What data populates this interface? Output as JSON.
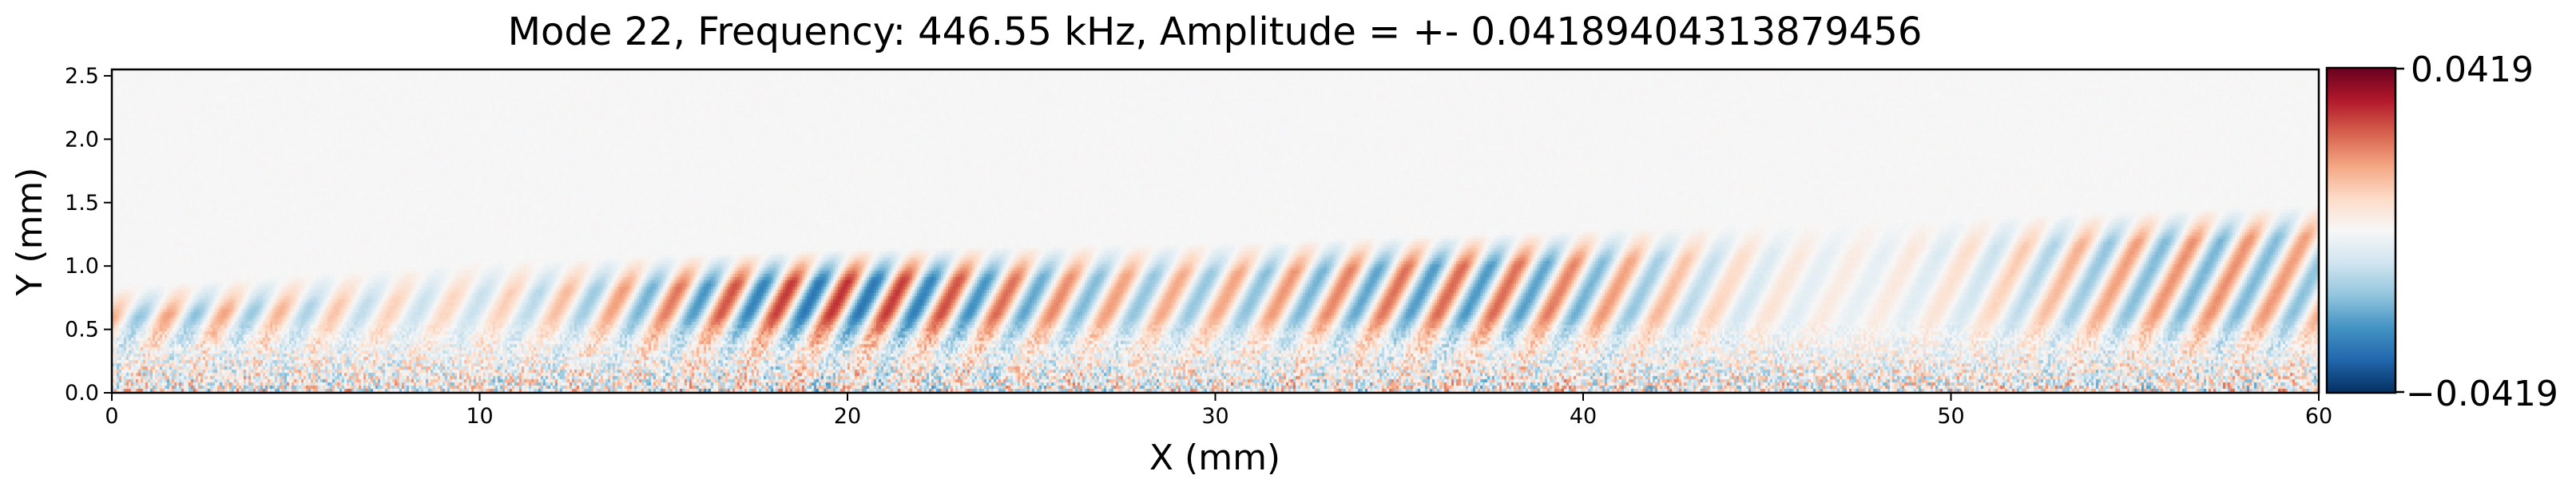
{
  "chart_data": {
    "type": "heatmap",
    "title": "Mode 22, Frequency: 446.55 kHz, Amplitude = +- 0.04189404313879456",
    "xlabel": "X (mm)",
    "ylabel": "Y (mm)",
    "xlim": [
      0,
      60
    ],
    "ylim": [
      0,
      2.55
    ],
    "x_ticks": [
      0,
      10,
      20,
      30,
      40,
      50,
      60
    ],
    "x_tick_labels": [
      "0",
      "10",
      "20",
      "30",
      "40",
      "50",
      "60"
    ],
    "y_ticks": [
      0.0,
      0.5,
      1.0,
      1.5,
      2.0,
      2.5
    ],
    "y_tick_labels": [
      "0.0",
      "0.5",
      "1.0",
      "1.5",
      "2.0",
      "2.5"
    ],
    "colorbar": {
      "cmap": "RdBu_r",
      "vmin": -0.0419,
      "vmax": 0.0419,
      "max_label": "0.0419",
      "min_label": "−0.0419",
      "colors": [
        "#053061",
        "#2166ac",
        "#4393c3",
        "#92c5de",
        "#d1e5f0",
        "#f7f7f7",
        "#fddbc7",
        "#f4a582",
        "#d6604d",
        "#b2182b",
        "#67001f"
      ]
    },
    "field_description": {
      "background_value": 0.0,
      "wave_packet_upper_edge_y_at_x": [
        [
          0,
          0.85
        ],
        [
          10,
          1.05
        ],
        [
          20,
          1.15
        ],
        [
          30,
          1.2
        ],
        [
          40,
          1.3
        ],
        [
          50,
          1.4
        ],
        [
          60,
          1.5
        ]
      ],
      "wavelength_mm": 1.5,
      "peak_amplitude": 0.0419,
      "noise_layer_top_y": 0.6
    }
  }
}
